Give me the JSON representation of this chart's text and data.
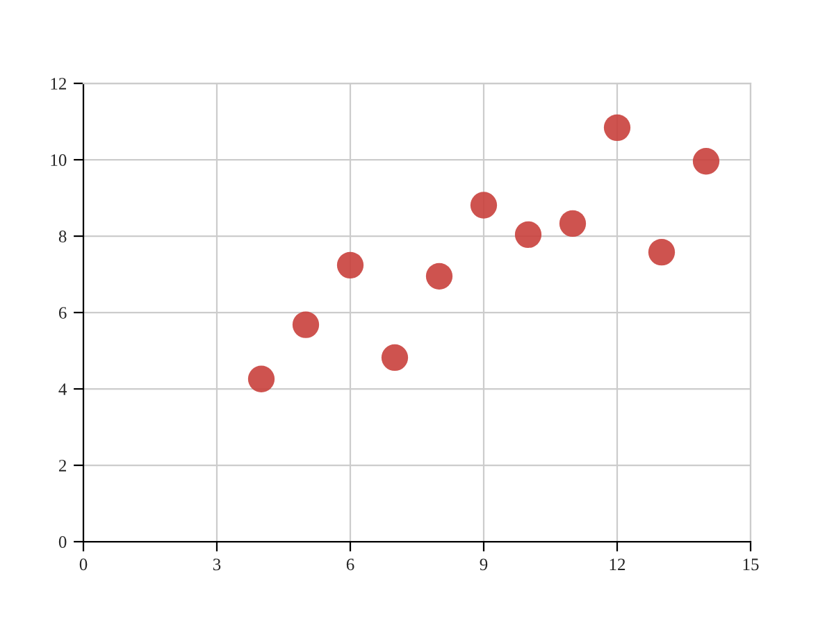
{
  "chart_data": {
    "type": "scatter",
    "x": [
      10,
      8,
      13,
      9,
      11,
      14,
      6,
      4,
      12,
      7,
      5
    ],
    "series": [
      {
        "color": "#c9403c",
        "values": [
          8.04,
          6.95,
          7.58,
          8.81,
          8.33,
          9.96,
          7.24,
          4.26,
          10.84,
          4.82,
          5.68
        ]
      }
    ],
    "xlim": [
      0,
      15
    ],
    "ylim": [
      0,
      12
    ],
    "xticks": [
      0,
      3,
      6,
      9,
      12,
      15
    ],
    "yticks": [
      0,
      2,
      4,
      6,
      8,
      10,
      12
    ],
    "grid": true,
    "marker": "circle"
  }
}
